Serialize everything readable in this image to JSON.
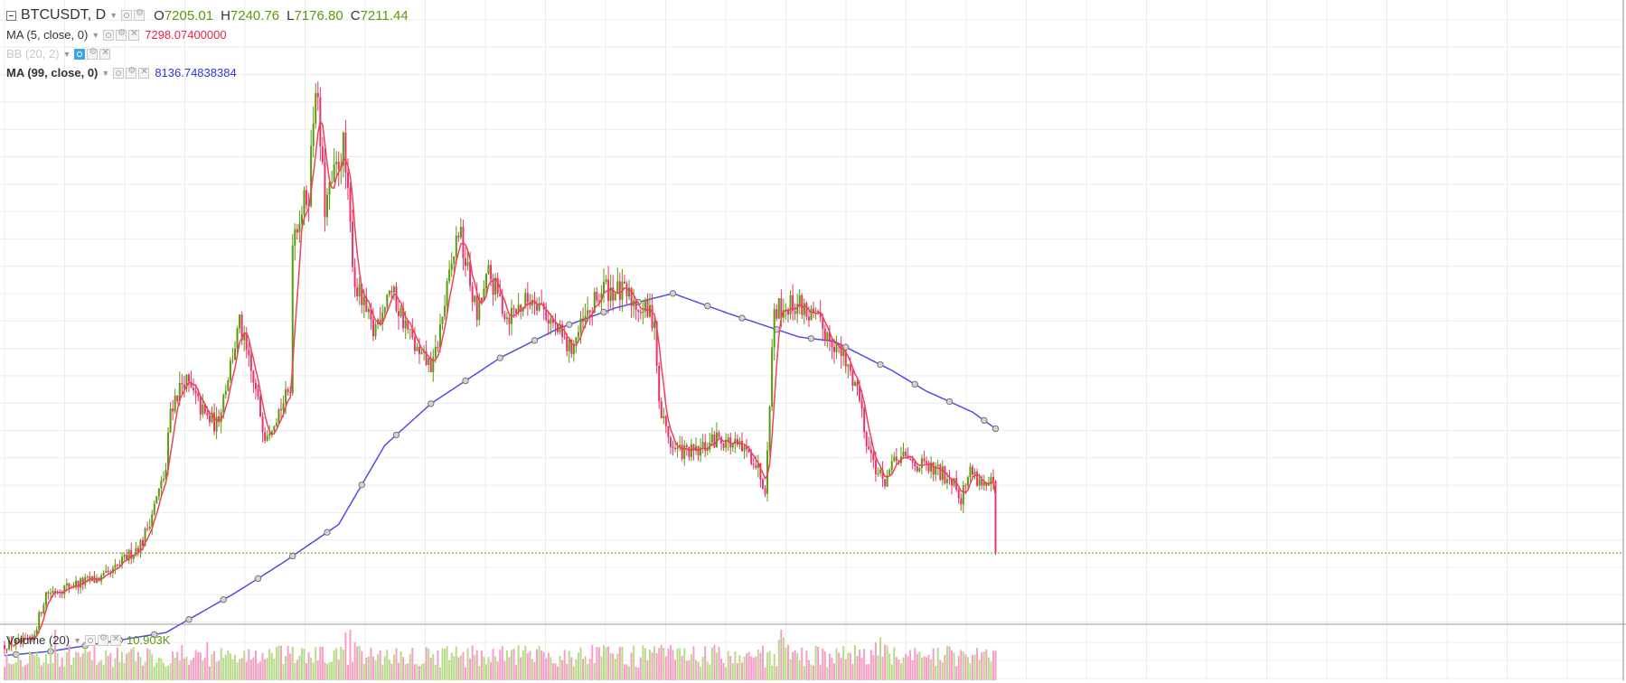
{
  "header": {
    "symbol": "BTCUSDT, D",
    "open_label": "O",
    "open": "7205.01",
    "high_label": "H",
    "high": "7240.76",
    "low_label": "L",
    "low": "7176.80",
    "close_label": "C",
    "close": "7211.44"
  },
  "indicators": [
    {
      "label": "MA (5, close, 0)",
      "value": "7298.07400000",
      "color": "#ee2244"
    },
    {
      "label": "BB (20, 2)",
      "value": "",
      "color": "#c8c8c8"
    },
    {
      "label": "MA (99, close, 0)",
      "value": "8136.74838384",
      "color": "#3333dd"
    }
  ],
  "volume_pane": {
    "label": "Volume (20)",
    "value": "10.903K",
    "value_color": "#5b9a0d"
  },
  "colors": {
    "up": "#5b9a0d",
    "down": "#e8336d",
    "ma5": "#f0405a",
    "ma99": "#4e4ee8",
    "vol_up": "#b9da8a",
    "vol_down": "#f59fc4",
    "grid": "#ececec",
    "last_price_line": "#5b9a0d"
  },
  "chart_data": {
    "type": "candlestick",
    "timeframe": "D",
    "ylim": [
      5500,
      20500
    ],
    "last_close": 7211.44,
    "anchors": [
      [
        0,
        5000
      ],
      [
        5,
        5050
      ],
      [
        12,
        5100
      ],
      [
        18,
        6250
      ],
      [
        30,
        6450
      ],
      [
        45,
        6650
      ],
      [
        60,
        7500
      ],
      [
        70,
        9200
      ],
      [
        72,
        10700
      ],
      [
        78,
        11400
      ],
      [
        87,
        10500
      ],
      [
        92,
        10300
      ],
      [
        102,
        12700
      ],
      [
        113,
        10100
      ],
      [
        124,
        11100
      ],
      [
        125,
        14900
      ],
      [
        132,
        15900
      ],
      [
        135,
        18600
      ],
      [
        139,
        15500
      ],
      [
        147,
        17000
      ],
      [
        152,
        13700
      ],
      [
        160,
        12500
      ],
      [
        167,
        13600
      ],
      [
        180,
        11900
      ],
      [
        186,
        11700
      ],
      [
        197,
        15000
      ],
      [
        205,
        12900
      ],
      [
        210,
        13900
      ],
      [
        218,
        12900
      ],
      [
        230,
        13400
      ],
      [
        245,
        12100
      ],
      [
        260,
        13600
      ],
      [
        270,
        13400
      ],
      [
        282,
        12850
      ],
      [
        284,
        10700
      ],
      [
        290,
        9700
      ],
      [
        300,
        9600
      ],
      [
        310,
        10000
      ],
      [
        318,
        9750
      ],
      [
        325,
        9500
      ],
      [
        330,
        8800
      ],
      [
        334,
        13100
      ],
      [
        345,
        13200
      ],
      [
        360,
        12300
      ],
      [
        370,
        11200
      ],
      [
        375,
        9700
      ],
      [
        381,
        8900
      ],
      [
        388,
        9500
      ],
      [
        398,
        9300
      ],
      [
        412,
        9000
      ],
      [
        415,
        8550
      ],
      [
        419,
        9200
      ],
      [
        426,
        8800
      ],
      [
        430,
        8900
      ]
    ],
    "ma99_anchors": [
      [
        0,
        4750
      ],
      [
        20,
        4850
      ],
      [
        70,
        5300
      ],
      [
        100,
        6250
      ],
      [
        120,
        6950
      ],
      [
        145,
        7900
      ],
      [
        165,
        9800
      ],
      [
        185,
        10800
      ],
      [
        215,
        11900
      ],
      [
        240,
        12600
      ],
      [
        265,
        13100
      ],
      [
        290,
        13450
      ],
      [
        315,
        12950
      ],
      [
        345,
        12400
      ],
      [
        360,
        12300
      ],
      [
        385,
        11600
      ],
      [
        400,
        11100
      ],
      [
        420,
        10600
      ],
      [
        430,
        10200
      ]
    ],
    "volume_spikes": [
      [
        22,
        1.0
      ],
      [
        88,
        0.75
      ],
      [
        148,
        0.95
      ],
      [
        150,
        1.0
      ],
      [
        152,
        0.75
      ],
      [
        205,
        0.6
      ],
      [
        285,
        0.7
      ],
      [
        336,
        0.8
      ],
      [
        337,
        1.0
      ],
      [
        338,
        0.85
      ],
      [
        340,
        0.7
      ],
      [
        378,
        0.75
      ],
      [
        380,
        0.85
      ],
      [
        382,
        0.7
      ],
      [
        415,
        0.6
      ]
    ]
  }
}
